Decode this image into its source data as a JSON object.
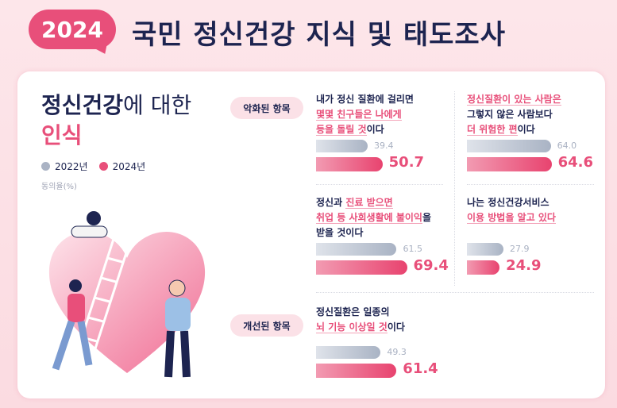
{
  "header": {
    "year_badge": "2024",
    "title": "국민 정신건강 지식 및 태도조사"
  },
  "section": {
    "title_bold": "정신건강",
    "title_light": "에 대한",
    "title_pink": "인식",
    "unit": "동의율(%)"
  },
  "legend": [
    {
      "label": "2022년",
      "color": "#aab3c4"
    },
    {
      "label": "2024년",
      "color": "#e84f7a"
    }
  ],
  "groups": {
    "worsened": "악화된 항목",
    "improved": "개선된 항목"
  },
  "chart_data": {
    "type": "bar",
    "series_names": [
      "2022년",
      "2024년"
    ],
    "ylabel": "동의율(%)",
    "items": [
      {
        "group": "악화된 항목",
        "lines": [
          [
            {
              "t": "내가 정신 질환에 걸리면",
              "p": false
            }
          ],
          [
            {
              "t": "몇몇 친구들은 나에게",
              "p": true
            }
          ],
          [
            {
              "t": "등을 돌릴 것",
              "p": true
            },
            {
              "t": "이다",
              "p": false
            }
          ]
        ],
        "v2022": 39.4,
        "v2024": 50.7,
        "v2022_label": "39.4",
        "v2024_label": "50.7"
      },
      {
        "group": "악화된 항목",
        "lines": [
          [
            {
              "t": "정신질환이 있는 사람은",
              "p": true
            }
          ],
          [
            {
              "t": "그렇지 않은 사람보다",
              "p": false
            }
          ],
          [
            {
              "t": "더 위험한 편",
              "p": true
            },
            {
              "t": "이다",
              "p": false
            }
          ]
        ],
        "v2022": 64.0,
        "v2024": 64.6,
        "v2022_label": "64.0",
        "v2024_label": "64.6"
      },
      {
        "group": "악화된 항목",
        "lines": [
          [
            {
              "t": "정신과 ",
              "p": false
            },
            {
              "t": "진료 받으면",
              "p": true
            }
          ],
          [
            {
              "t": "취업 등 사회생활에 불이익",
              "p": true
            },
            {
              "t": "을",
              "p": false
            }
          ],
          [
            {
              "t": "받을 것이다",
              "p": false
            }
          ]
        ],
        "v2022": 61.5,
        "v2024": 69.4,
        "v2022_label": "61.5",
        "v2024_label": "69.4"
      },
      {
        "group": "악화된 항목",
        "lines": [
          [
            {
              "t": "나는 정신건강서비스",
              "p": false
            }
          ],
          [
            {
              "t": "이용 방법을 알고 있다",
              "p": true
            }
          ]
        ],
        "v2022": 27.9,
        "v2024": 24.9,
        "v2022_label": "27.9",
        "v2024_label": "24.9"
      },
      {
        "group": "개선된 항목",
        "lines": [
          [
            {
              "t": "정신질환은 일종의",
              "p": false
            }
          ],
          [
            {
              "t": "뇌 기능 이상일 것",
              "p": true
            },
            {
              "t": "이다",
              "p": false
            }
          ]
        ],
        "v2022": 49.3,
        "v2024": 61.4,
        "v2022_label": "49.3",
        "v2024_label": "61.4"
      }
    ]
  }
}
